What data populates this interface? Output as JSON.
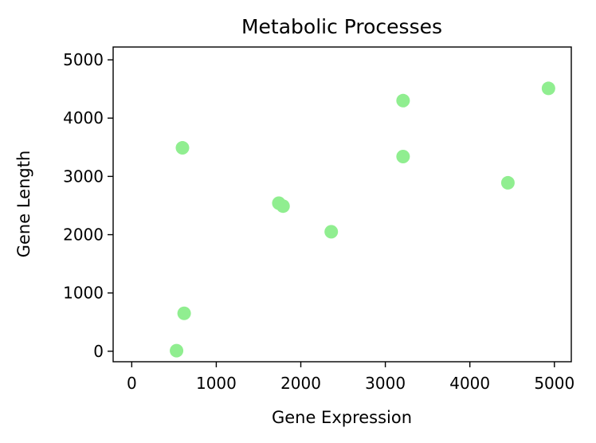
{
  "chart_data": {
    "type": "scatter",
    "title": "Metabolic Processes",
    "xlabel": "Gene Expression",
    "ylabel": "Gene Length",
    "xlim": [
      -220,
      5200
    ],
    "ylim": [
      -180,
      5220
    ],
    "xticks": [
      0,
      1000,
      2000,
      3000,
      4000,
      5000
    ],
    "yticks": [
      0,
      1000,
      2000,
      3000,
      4000,
      5000
    ],
    "grid": false,
    "marker_color": "#90ee90",
    "points": [
      {
        "x": 530,
        "y": 10
      },
      {
        "x": 620,
        "y": 650
      },
      {
        "x": 600,
        "y": 3490
      },
      {
        "x": 1740,
        "y": 2540
      },
      {
        "x": 1790,
        "y": 2490
      },
      {
        "x": 2360,
        "y": 2050
      },
      {
        "x": 3210,
        "y": 4300
      },
      {
        "x": 3210,
        "y": 3340
      },
      {
        "x": 4450,
        "y": 2890
      },
      {
        "x": 4930,
        "y": 4510
      }
    ]
  }
}
